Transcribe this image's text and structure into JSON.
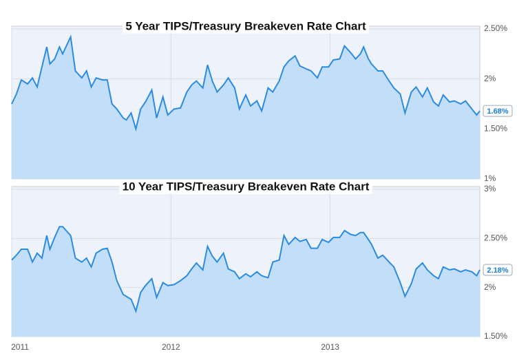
{
  "chart_data": [
    {
      "type": "area",
      "title": "5 Year TIPS/Treasury Breakeven Rate Chart",
      "x": [
        2011.0,
        2011.03,
        2011.06,
        2011.1,
        2011.13,
        2011.16,
        2011.19,
        2011.22,
        2011.24,
        2011.27,
        2011.3,
        2011.32,
        2011.37,
        2011.4,
        2011.44,
        2011.47,
        2011.5,
        2011.53,
        2011.57,
        2011.6,
        2011.63,
        2011.66,
        2011.7,
        2011.72,
        2011.75,
        2011.78,
        2011.81,
        2011.84,
        2011.88,
        2011.91,
        2011.95,
        2011.98,
        2012.02,
        2012.06,
        2012.1,
        2012.13,
        2012.16,
        2012.2,
        2012.23,
        2012.26,
        2012.29,
        2012.33,
        2012.36,
        2012.4,
        2012.43,
        2012.47,
        2012.5,
        2012.54,
        2012.57,
        2012.61,
        2012.64,
        2012.68,
        2012.71,
        2012.74,
        2012.78,
        2012.81,
        2012.85,
        2012.88,
        2012.92,
        2012.95,
        2012.99,
        2013.02,
        2013.06,
        2013.09,
        2013.13,
        2013.16,
        2013.19,
        2013.21,
        2013.24,
        2013.26,
        2013.3,
        2013.33,
        2013.37,
        2013.4,
        2013.44,
        2013.47,
        2013.51,
        2013.54,
        2013.58,
        2013.61,
        2013.65,
        2013.68,
        2013.71,
        2013.75,
        2013.78,
        2013.82,
        2013.85,
        2013.89,
        2013.92,
        2013.94
      ],
      "series": [
        {
          "name": "5 Year",
          "color": "#2a8be2",
          "fill": "#c2def8",
          "values": [
            1.75,
            1.85,
            1.99,
            1.95,
            2.01,
            1.92,
            2.12,
            2.32,
            2.15,
            2.2,
            2.32,
            2.25,
            2.42,
            2.08,
            2.01,
            2.08,
            1.92,
            2.01,
            1.99,
            1.99,
            1.75,
            1.7,
            1.61,
            1.59,
            1.66,
            1.5,
            1.7,
            1.77,
            1.89,
            1.61,
            1.82,
            1.64,
            1.7,
            1.71,
            1.87,
            1.94,
            1.98,
            1.91,
            2.14,
            1.98,
            1.87,
            1.94,
            2.01,
            1.91,
            1.7,
            1.84,
            1.73,
            1.78,
            1.68,
            1.91,
            1.87,
            1.98,
            2.12,
            2.18,
            2.23,
            2.13,
            2.1,
            2.08,
            2.01,
            2.12,
            2.12,
            2.19,
            2.2,
            2.33,
            2.26,
            2.2,
            2.25,
            2.32,
            2.2,
            2.15,
            2.08,
            2.08,
            1.98,
            1.91,
            1.85,
            1.66,
            1.87,
            1.92,
            1.82,
            1.91,
            1.77,
            1.73,
            1.84,
            1.77,
            1.78,
            1.75,
            1.78,
            1.7,
            1.64,
            1.68
          ]
        }
      ],
      "end_label": "1.68%",
      "xlim": [
        2011,
        2013.94
      ],
      "xticks": [
        2011,
        2012,
        2013
      ],
      "ylim": [
        1,
        2.5
      ],
      "yticks": [
        {
          "value": 2.5,
          "label": "2.50%"
        },
        {
          "value": 2,
          "label": "2%"
        },
        {
          "value": 1.5,
          "label": "1.50%"
        },
        {
          "value": 1,
          "label": "1%"
        }
      ],
      "grid": true
    },
    {
      "type": "area",
      "title": "10 Year TIPS/Treasury Breakeven Rate Chart",
      "x": [
        2011.0,
        2011.03,
        2011.06,
        2011.1,
        2011.13,
        2011.16,
        2011.19,
        2011.22,
        2011.24,
        2011.27,
        2011.3,
        2011.32,
        2011.37,
        2011.4,
        2011.44,
        2011.47,
        2011.5,
        2011.53,
        2011.57,
        2011.6,
        2011.63,
        2011.66,
        2011.7,
        2011.72,
        2011.75,
        2011.78,
        2011.81,
        2011.84,
        2011.88,
        2011.91,
        2011.95,
        2011.98,
        2012.02,
        2012.06,
        2012.1,
        2012.13,
        2012.16,
        2012.2,
        2012.23,
        2012.26,
        2012.29,
        2012.33,
        2012.36,
        2012.4,
        2012.43,
        2012.47,
        2012.5,
        2012.54,
        2012.57,
        2012.61,
        2012.64,
        2012.68,
        2012.71,
        2012.74,
        2012.78,
        2012.81,
        2012.85,
        2012.88,
        2012.92,
        2012.95,
        2012.99,
        2013.02,
        2013.06,
        2013.09,
        2013.13,
        2013.16,
        2013.19,
        2013.21,
        2013.24,
        2013.26,
        2013.3,
        2013.33,
        2013.37,
        2013.4,
        2013.44,
        2013.47,
        2013.51,
        2013.54,
        2013.58,
        2013.61,
        2013.65,
        2013.68,
        2013.71,
        2013.75,
        2013.78,
        2013.82,
        2013.85,
        2013.89,
        2013.92,
        2013.94
      ],
      "series": [
        {
          "name": "10 Year",
          "color": "#2a8be2",
          "fill": "#c2def8",
          "values": [
            2.28,
            2.33,
            2.39,
            2.39,
            2.26,
            2.35,
            2.3,
            2.53,
            2.39,
            2.51,
            2.62,
            2.62,
            2.53,
            2.3,
            2.26,
            2.3,
            2.21,
            2.35,
            2.39,
            2.4,
            2.26,
            2.07,
            1.93,
            1.91,
            1.88,
            1.76,
            1.95,
            2.02,
            2.09,
            1.9,
            2.05,
            2.02,
            2.03,
            2.07,
            2.12,
            2.19,
            2.25,
            2.18,
            2.42,
            2.32,
            2.26,
            2.35,
            2.19,
            2.16,
            2.09,
            2.14,
            2.11,
            2.16,
            2.12,
            2.1,
            2.26,
            2.28,
            2.53,
            2.44,
            2.51,
            2.47,
            2.49,
            2.4,
            2.4,
            2.49,
            2.46,
            2.51,
            2.51,
            2.58,
            2.54,
            2.53,
            2.56,
            2.56,
            2.49,
            2.44,
            2.3,
            2.33,
            2.26,
            2.21,
            2.05,
            1.91,
            2.04,
            2.19,
            2.25,
            2.18,
            2.12,
            2.09,
            2.21,
            2.18,
            2.19,
            2.16,
            2.18,
            2.16,
            2.12,
            2.18
          ]
        }
      ],
      "end_label": "2.18%",
      "xlim": [
        2011,
        2013.94
      ],
      "xticks": [
        2011,
        2012,
        2013
      ],
      "ylim": [
        1.5,
        3
      ],
      "yticks": [
        {
          "value": 3,
          "label": "3%"
        },
        {
          "value": 2.5,
          "label": "2.50%"
        },
        {
          "value": 2,
          "label": "2%"
        },
        {
          "value": 1.5,
          "label": "1.50%"
        }
      ],
      "grid": true
    }
  ]
}
